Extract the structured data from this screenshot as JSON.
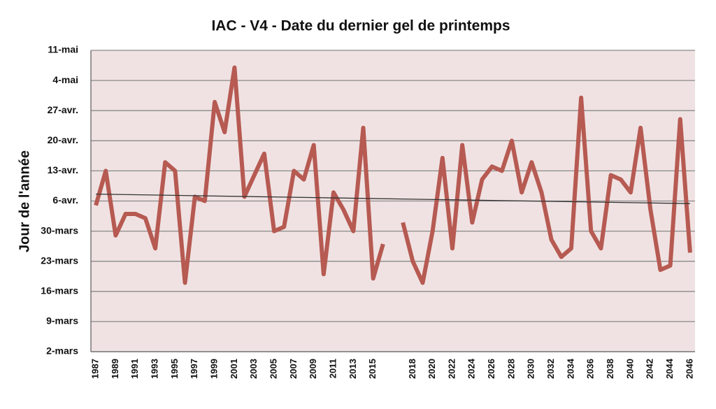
{
  "chart_data": {
    "type": "line",
    "title": "IAC - V4 - Date du dernier gel de printemps",
    "y_label": "Jour de l'année",
    "categories": [
      "1987",
      null,
      "1989",
      null,
      "1991",
      null,
      "1993",
      null,
      "1995",
      null,
      "1997",
      null,
      "1999",
      null,
      "2001",
      null,
      "2003",
      null,
      "2005",
      null,
      "2007",
      null,
      "2009",
      null,
      "2011",
      null,
      "2013",
      null,
      "2015",
      null,
      null,
      null,
      "2018",
      null,
      "2020",
      null,
      "2022",
      null,
      "2024",
      null,
      "2026",
      null,
      "2028",
      null,
      "2030",
      null,
      "2032",
      null,
      "2034",
      null,
      "2036",
      null,
      "2038",
      null,
      "2040",
      null,
      "2042",
      null,
      "2044",
      null,
      "2046"
    ],
    "values": [
      95,
      103,
      88,
      93,
      93,
      92,
      85,
      105,
      103,
      77,
      97,
      96,
      119,
      112,
      127,
      97,
      102,
      107,
      89,
      90,
      103,
      101,
      109,
      79,
      98,
      94,
      89,
      113,
      78,
      86,
      null,
      91,
      82,
      77,
      89,
      106,
      85,
      109,
      91,
      101,
      104,
      103,
      110,
      98,
      105,
      98,
      87,
      83,
      85,
      120,
      89,
      85,
      102,
      101,
      98,
      113,
      94,
      80,
      81,
      115,
      84
    ],
    "color": "#b65a52",
    "trendline": {
      "values": [
        97.6,
        95.4
      ],
      "color": "#333333"
    },
    "ylim": [
      61,
      131
    ],
    "yticks": [
      {
        "value": 61,
        "label": "2-mars"
      },
      {
        "value": 68,
        "label": "9-mars"
      },
      {
        "value": 75,
        "label": "16-mars"
      },
      {
        "value": 82,
        "label": "23-mars"
      },
      {
        "value": 89,
        "label": "30-mars"
      },
      {
        "value": 96,
        "label": "6-avr."
      },
      {
        "value": 103,
        "label": "13-avr."
      },
      {
        "value": 110,
        "label": "20-avr."
      },
      {
        "value": 117,
        "label": "27-avr."
      },
      {
        "value": 124,
        "label": "4-mai"
      },
      {
        "value": 131,
        "label": "11-mai"
      }
    ],
    "grid": true,
    "plot_background": "#f0e2e2"
  }
}
